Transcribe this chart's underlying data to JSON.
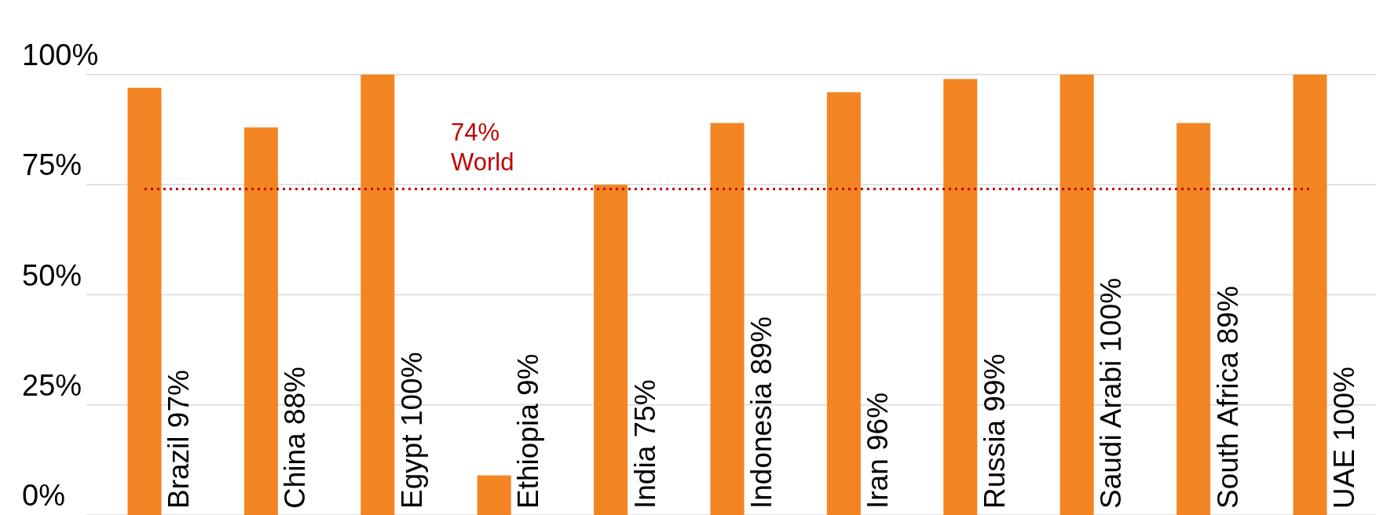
{
  "chart_data": {
    "type": "bar",
    "categories": [
      "Brazil",
      "China",
      "Egypt",
      "Ethiopia",
      "India",
      "Indonesia",
      "Iran",
      "Russia",
      "Saudi Arabi",
      "South Africa",
      "UAE"
    ],
    "values": [
      97,
      88,
      100,
      9,
      75,
      89,
      96,
      99,
      100,
      89,
      100
    ],
    "value_labels": [
      "97%",
      "88%",
      "100%",
      "9%",
      "75%",
      "89%",
      "96%",
      "99%",
      "100%",
      "89%",
      "100%"
    ],
    "color": "#f28522",
    "ylim": [
      0,
      100
    ],
    "yticks": [
      {
        "value": 0,
        "label": "0%"
      },
      {
        "value": 25,
        "label": "25%"
      },
      {
        "value": 50,
        "label": "50%"
      },
      {
        "value": 75,
        "label": "75%"
      },
      {
        "value": 100,
        "label": "100%"
      }
    ],
    "grid": "y",
    "ref_lines": [
      {
        "axis": "y",
        "value": 74,
        "label": "74%\nWorld",
        "color": "#c00000",
        "line_style": "dotted"
      }
    ]
  }
}
